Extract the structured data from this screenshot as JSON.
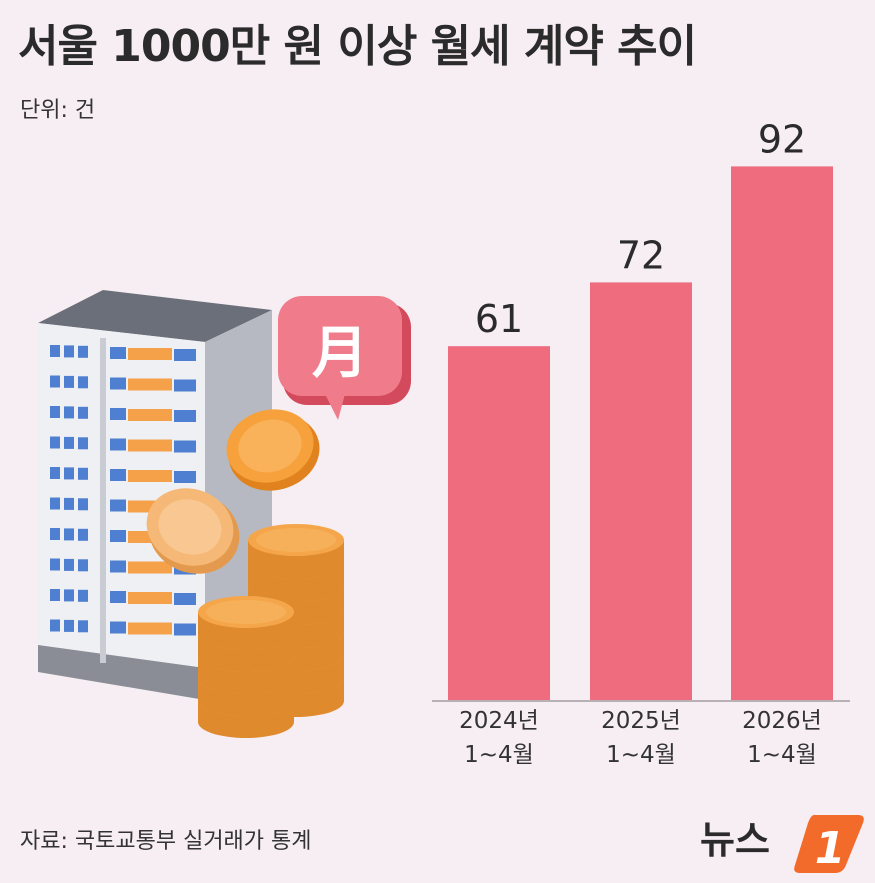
{
  "title": "서울 1000만 원 이상 월세 계약 추이",
  "unit_label": "단위: 건",
  "source": "자료: 국토교통부 실거래가 통계",
  "logo": {
    "text": "뉴스",
    "mark": "1"
  },
  "illustration": {
    "badge_char": "月",
    "icon": "apartment-and-coins-icon"
  },
  "colors": {
    "bar": "#ef6b7e",
    "background": "#f7eef4",
    "accent": "#f36b2a"
  },
  "chart_data": {
    "type": "bar",
    "categories": [
      [
        "2024년",
        "1~4월"
      ],
      [
        "2025년",
        "1~4월"
      ],
      [
        "2026년",
        "1~4월"
      ]
    ],
    "values": [
      61,
      72,
      92
    ],
    "ylim": [
      0,
      100
    ],
    "grid": false,
    "legend": "none"
  }
}
